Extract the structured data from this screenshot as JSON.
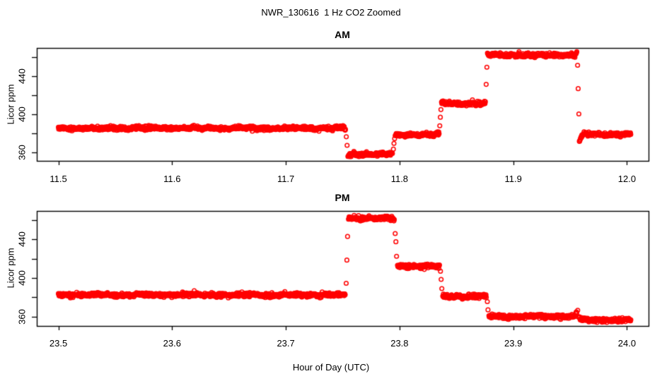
{
  "chart_data": {
    "type": "scatter",
    "title": "NWR_130616  1 Hz CO2 Zoomed",
    "xlabel": "Hour of Day (UTC)",
    "ylabel": "Licor ppm",
    "marker": "open-circle",
    "point_color": "#FF0000",
    "axis_color": "#000000",
    "background": "#FFFFFF",
    "grid": "off",
    "legend": "none",
    "sample_rate_hz": 1,
    "panels": [
      {
        "name": "AM",
        "title": "AM",
        "xlim": [
          11.481,
          12.019
        ],
        "ylim": [
          351.2,
          469.7
        ],
        "xticks": [
          11.5,
          11.6,
          11.7,
          11.8,
          11.9,
          12.0
        ],
        "xtick_labels": [
          "11.5",
          "11.6",
          "11.7",
          "11.8",
          "11.9",
          "12.0"
        ],
        "yticks": [
          360,
          380,
          400,
          420,
          440,
          460
        ],
        "ytick_labeled": [
          360,
          400,
          440
        ],
        "ytick_labels": [
          "360",
          "400",
          "440"
        ],
        "segments": [
          {
            "t0": 11.5,
            "t1": 11.7526,
            "level": 385.5
          },
          {
            "t0": 11.7546,
            "t1": 11.794,
            "level": 358.2,
            "start_dip": [
              -2.5,
              0.005
            ]
          },
          {
            "t0": 11.7962,
            "t1": 11.8349,
            "level": 378.6
          },
          {
            "t0": 11.8369,
            "t1": 11.8757,
            "level": 411.5
          },
          {
            "t0": 11.8773,
            "t1": 11.9561,
            "level": 462.4,
            "end_rise": [
              3.0,
              0.002
            ]
          },
          {
            "t0": 11.9581,
            "t1": 12.0035,
            "level": 379.0,
            "start_dip": [
              -8.0,
              0.0035
            ]
          }
        ],
        "transitions": [
          [
            11.7532,
            376.5
          ],
          [
            11.7539,
            367.5
          ],
          [
            11.7946,
            363.5
          ],
          [
            11.7951,
            369.5
          ],
          [
            11.7957,
            374.5
          ],
          [
            11.8354,
            388.0
          ],
          [
            11.8359,
            397.0
          ],
          [
            11.8364,
            405.0
          ],
          [
            11.8762,
            431.5
          ],
          [
            11.8768,
            449.5
          ],
          [
            11.9566,
            451.5
          ],
          [
            11.9571,
            427.0
          ],
          [
            11.9577,
            400.5
          ]
        ]
      },
      {
        "name": "PM",
        "title": "PM",
        "xlim": [
          23.481,
          24.019
        ],
        "ylim": [
          350.3,
          469.4
        ],
        "xticks": [
          23.5,
          23.6,
          23.7,
          23.8,
          23.9,
          24.0
        ],
        "xtick_labels": [
          "23.5",
          "23.6",
          "23.7",
          "23.8",
          "23.9",
          "24.0"
        ],
        "yticks": [
          360,
          380,
          400,
          420,
          440,
          460
        ],
        "ytick_labeled": [
          360,
          400,
          440
        ],
        "ytick_labels": [
          "360",
          "400",
          "440"
        ],
        "segments": [
          {
            "t0": 23.5,
            "t1": 23.7523,
            "level": 382.5
          },
          {
            "t0": 23.7551,
            "t1": 23.7956,
            "level": 461.8
          },
          {
            "t0": 23.7982,
            "t1": 23.8354,
            "level": 412.2
          },
          {
            "t0": 23.838,
            "t1": 23.8766,
            "level": 381.0
          },
          {
            "t0": 23.8786,
            "t1": 23.9561,
            "level": 360.3,
            "end_rise": [
              5.0,
              0.0018
            ]
          },
          {
            "t0": 23.9576,
            "t1": 24.0035,
            "level": 356.6,
            "start_dip": [
              2.0,
              0.004
            ]
          }
        ],
        "transitions": [
          [
            23.7531,
            394.5
          ],
          [
            23.7537,
            418.5
          ],
          [
            23.7543,
            443.0
          ],
          [
            23.7962,
            446.0
          ],
          [
            23.7968,
            437.5
          ],
          [
            23.7974,
            422.5
          ],
          [
            23.836,
            407.0
          ],
          [
            23.8366,
            398.5
          ],
          [
            23.8372,
            389.0
          ],
          [
            23.8772,
            375.5
          ],
          [
            23.8778,
            367.0
          ],
          [
            23.9567,
            366.5
          ]
        ]
      }
    ]
  }
}
